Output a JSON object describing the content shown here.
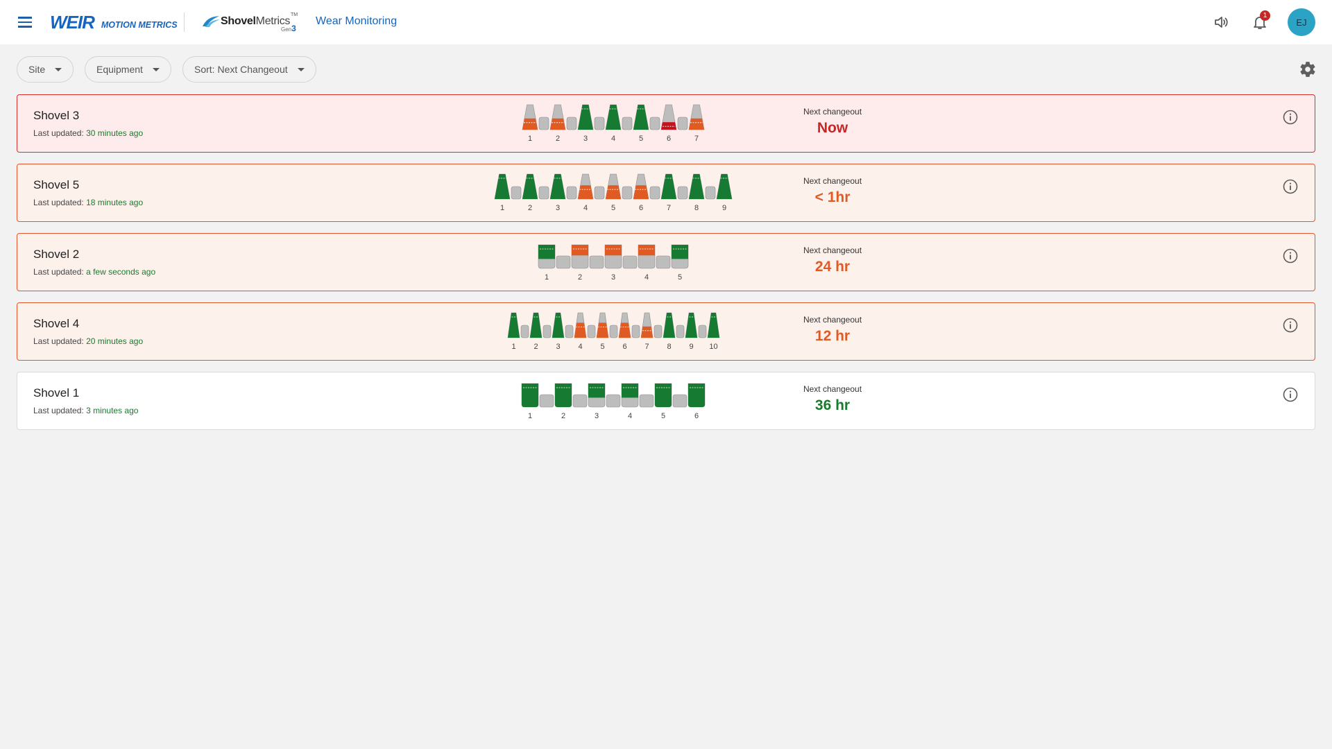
{
  "header": {
    "brand_mark": "WEIR",
    "brand_subtitle": "MOTION METRICS",
    "product_name_bold": "Shovel",
    "product_name_light": "Metrics",
    "product_tm": "TM",
    "product_gen_label": "Gen",
    "product_gen_number": "3",
    "app_title": "Wear Monitoring",
    "notification_count": "1",
    "user_initials": "EJ"
  },
  "filters": [
    {
      "label": "Site"
    },
    {
      "label": "Equipment"
    },
    {
      "label": "Sort: Next Changeout"
    }
  ],
  "colors": {
    "green": "#177a32",
    "orange": "#e05a24",
    "red": "#c4121e",
    "grey": "#bdbdbd",
    "brand_blue": "#1565c0"
  },
  "shovels": [
    {
      "name": "Shovel 3",
      "updated_label": "Last updated:",
      "updated_ago": "30 minutes ago",
      "next_changeout_label": "Next changeout",
      "next_changeout_value": "Now",
      "severity": "now",
      "tooth_shape": "tooth",
      "teeth": [
        {
          "label": "1",
          "status": "orange",
          "wear_fraction": 0.45
        },
        {
          "label": "2",
          "status": "orange",
          "wear_fraction": 0.45
        },
        {
          "label": "3",
          "status": "green",
          "wear_fraction": 1.0
        },
        {
          "label": "4",
          "status": "green",
          "wear_fraction": 1.0
        },
        {
          "label": "5",
          "status": "green",
          "wear_fraction": 1.0
        },
        {
          "label": "6",
          "status": "red",
          "wear_fraction": 0.3
        },
        {
          "label": "7",
          "status": "orange",
          "wear_fraction": 0.45
        }
      ]
    },
    {
      "name": "Shovel 5",
      "updated_label": "Last updated:",
      "updated_ago": "18 minutes ago",
      "next_changeout_label": "Next changeout",
      "next_changeout_value": "< 1hr",
      "severity": "warn",
      "tooth_shape": "tooth",
      "teeth": [
        {
          "label": "1",
          "status": "green",
          "wear_fraction": 1.0
        },
        {
          "label": "2",
          "status": "green",
          "wear_fraction": 1.0
        },
        {
          "label": "3",
          "status": "green",
          "wear_fraction": 1.0
        },
        {
          "label": "4",
          "status": "orange",
          "wear_fraction": 0.55
        },
        {
          "label": "5",
          "status": "orange",
          "wear_fraction": 0.55
        },
        {
          "label": "6",
          "status": "orange",
          "wear_fraction": 0.55
        },
        {
          "label": "7",
          "status": "green",
          "wear_fraction": 1.0
        },
        {
          "label": "8",
          "status": "green",
          "wear_fraction": 1.0
        },
        {
          "label": "9",
          "status": "green",
          "wear_fraction": 1.0
        }
      ]
    },
    {
      "name": "Shovel 2",
      "updated_label": "Last updated:",
      "updated_ago": "a few seconds ago",
      "next_changeout_label": "Next changeout",
      "next_changeout_value": "24 hr",
      "severity": "warn",
      "tooth_shape": "block",
      "teeth": [
        {
          "label": "1",
          "status": "green",
          "wear_fraction": 0.6
        },
        {
          "label": "2",
          "status": "orange",
          "wear_fraction": 0.45
        },
        {
          "label": "3",
          "status": "orange",
          "wear_fraction": 0.45
        },
        {
          "label": "4",
          "status": "orange",
          "wear_fraction": 0.45
        },
        {
          "label": "5",
          "status": "green",
          "wear_fraction": 0.6
        }
      ]
    },
    {
      "name": "Shovel 4",
      "updated_label": "Last updated:",
      "updated_ago": "20 minutes ago",
      "next_changeout_label": "Next changeout",
      "next_changeout_value": "12 hr",
      "severity": "warn",
      "tooth_shape": "tooth",
      "teeth": [
        {
          "label": "1",
          "status": "green",
          "wear_fraction": 1.0
        },
        {
          "label": "2",
          "status": "green",
          "wear_fraction": 1.0
        },
        {
          "label": "3",
          "status": "green",
          "wear_fraction": 1.0
        },
        {
          "label": "4",
          "status": "orange",
          "wear_fraction": 0.6
        },
        {
          "label": "5",
          "status": "orange",
          "wear_fraction": 0.6
        },
        {
          "label": "6",
          "status": "orange",
          "wear_fraction": 0.6
        },
        {
          "label": "7",
          "status": "orange",
          "wear_fraction": 0.45
        },
        {
          "label": "8",
          "status": "green",
          "wear_fraction": 1.0
        },
        {
          "label": "9",
          "status": "green",
          "wear_fraction": 1.0
        },
        {
          "label": "10",
          "status": "green",
          "wear_fraction": 1.0
        }
      ]
    },
    {
      "name": "Shovel 1",
      "updated_label": "Last updated:",
      "updated_ago": "3 minutes ago",
      "next_changeout_label": "Next changeout",
      "next_changeout_value": "36 hr",
      "severity": "ok",
      "tooth_shape": "block",
      "teeth": [
        {
          "label": "1",
          "status": "green",
          "wear_fraction": 1.0
        },
        {
          "label": "2",
          "status": "green",
          "wear_fraction": 1.0
        },
        {
          "label": "3",
          "status": "green",
          "wear_fraction": 0.6
        },
        {
          "label": "4",
          "status": "green",
          "wear_fraction": 0.6
        },
        {
          "label": "5",
          "status": "green",
          "wear_fraction": 1.0
        },
        {
          "label": "6",
          "status": "green",
          "wear_fraction": 1.0
        }
      ]
    }
  ],
  "icons": {
    "menu": "menu-icon",
    "volume": "volume-icon",
    "notifications": "bell-icon",
    "settings": "gear-icon",
    "info": "info-icon",
    "dropdown": "caret-down-icon"
  }
}
